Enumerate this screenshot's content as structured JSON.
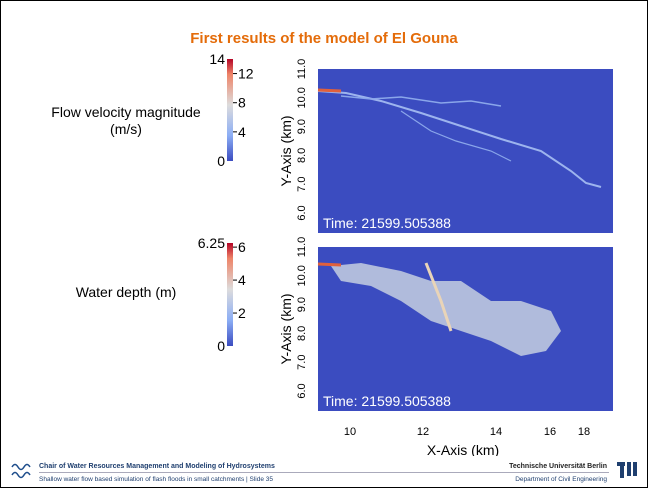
{
  "title": "First results of the model of El Gouna",
  "panels": [
    {
      "label": "Flow velocity magnitude (m/s)",
      "colorbar": {
        "max": 14,
        "min": 0,
        "ticks": [
          12,
          8,
          4
        ]
      },
      "y_axis": {
        "label": "Y-Axis (km)",
        "ticks": [
          "11.0",
          "10.0",
          "9.0",
          "8.0",
          "7.0",
          "6.0"
        ]
      },
      "time": "Time: 21599.505388"
    },
    {
      "label": "Water depth (m)",
      "colorbar": {
        "max": 6.25,
        "min": 0,
        "ticks": [
          6,
          4,
          2
        ]
      },
      "y_axis": {
        "label": "Y-Axis (km)",
        "ticks": [
          "11.0",
          "10.0",
          "9.0",
          "8.0",
          "7.0",
          "6.0"
        ]
      },
      "time": "Time: 21599.505388"
    }
  ],
  "x_axis": {
    "label": "X-Axis (km)",
    "ticks": [
      "10",
      "12",
      "14",
      "16",
      "18"
    ]
  },
  "footer": {
    "chair": "Chair of Water Resources Management and Modeling of Hydrosystems",
    "subtitle": "Shallow water flow based simulation of flash floods in small catchments  |  Slide 35",
    "university": "Technische Universität Berlin",
    "department": "Department of Civil Engineering"
  }
}
